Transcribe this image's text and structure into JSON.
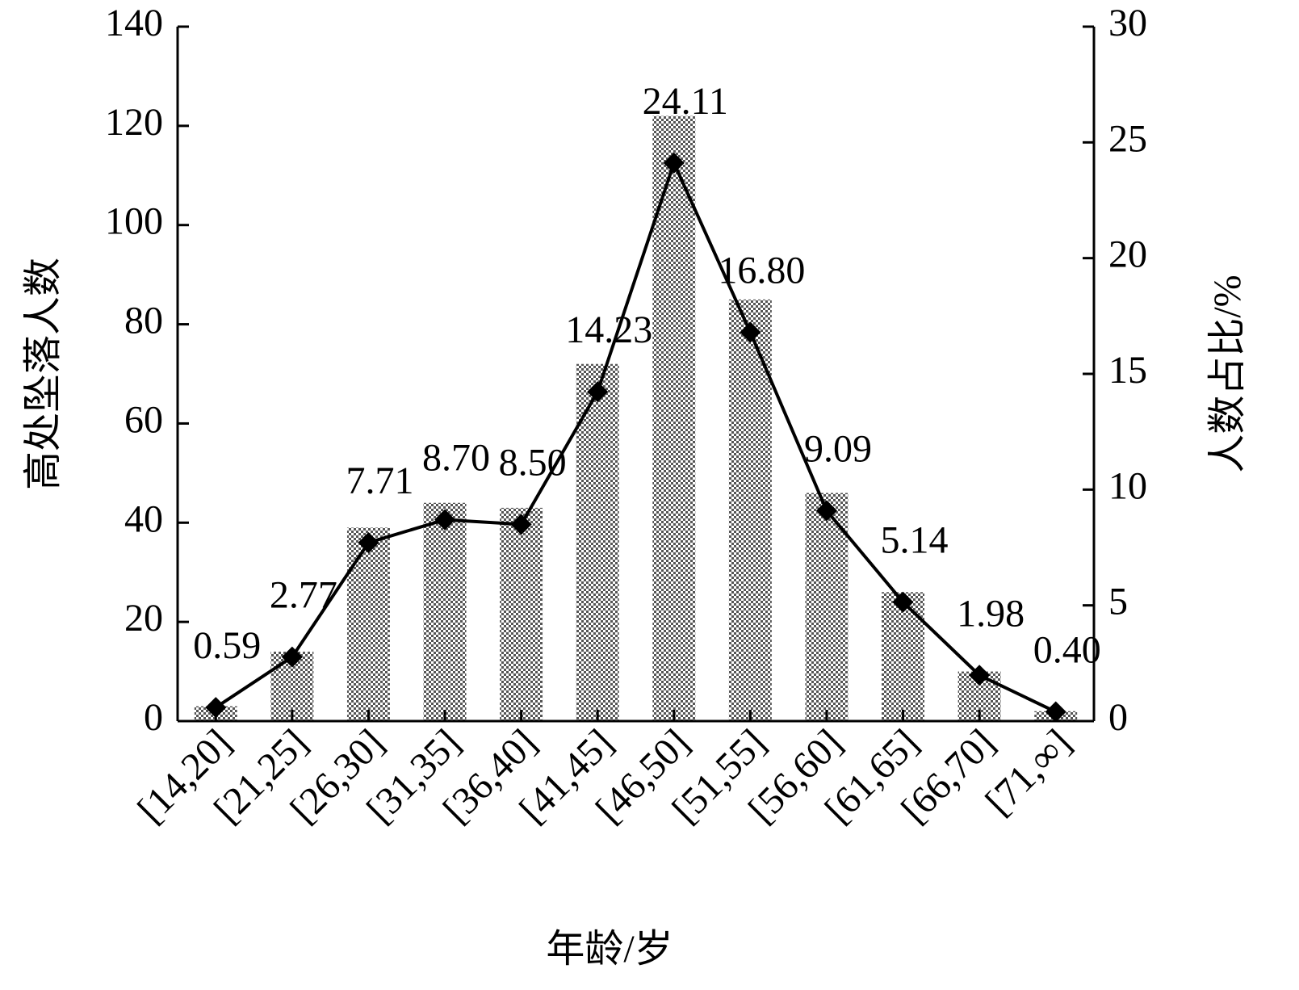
{
  "chart_data": {
    "type": "bar",
    "categories": [
      "[14,20]",
      "[21,25]",
      "[26,30]",
      "[31,35]",
      "[36,40]",
      "[41,45]",
      "[46,50]",
      "[51,55]",
      "[56,60]",
      "[61,65]",
      "[66,70]",
      "[71,∞]"
    ],
    "series": [
      {
        "name": "高处坠落人数",
        "type": "bar",
        "color": "#555555",
        "values": [
          3,
          14,
          39,
          44,
          43,
          72,
          122,
          85,
          46,
          26,
          10,
          2
        ]
      },
      {
        "name": "人数占比/%",
        "type": "line",
        "axis": "y2",
        "color": "#000000",
        "values": [
          0.59,
          2.77,
          7.71,
          8.7,
          8.5,
          14.23,
          24.11,
          16.8,
          9.09,
          5.14,
          1.98,
          0.4
        ],
        "value_labels": [
          "0.59",
          "2.77",
          "7.71",
          "8.70",
          "8.50",
          "14.23",
          "24.11",
          "16.80",
          "9.09",
          "5.14",
          "1.98",
          "0.40"
        ]
      }
    ],
    "x_label": "年龄/岁",
    "y_label": "高处坠落人数",
    "y2_label": "人数占比/%",
    "ylim": [
      0,
      140
    ],
    "yticks": [
      0,
      20,
      40,
      60,
      80,
      100,
      120,
      140
    ],
    "y2lim": [
      0,
      30
    ],
    "y2ticks": [
      0,
      5,
      10,
      15,
      20,
      25,
      30
    ]
  }
}
